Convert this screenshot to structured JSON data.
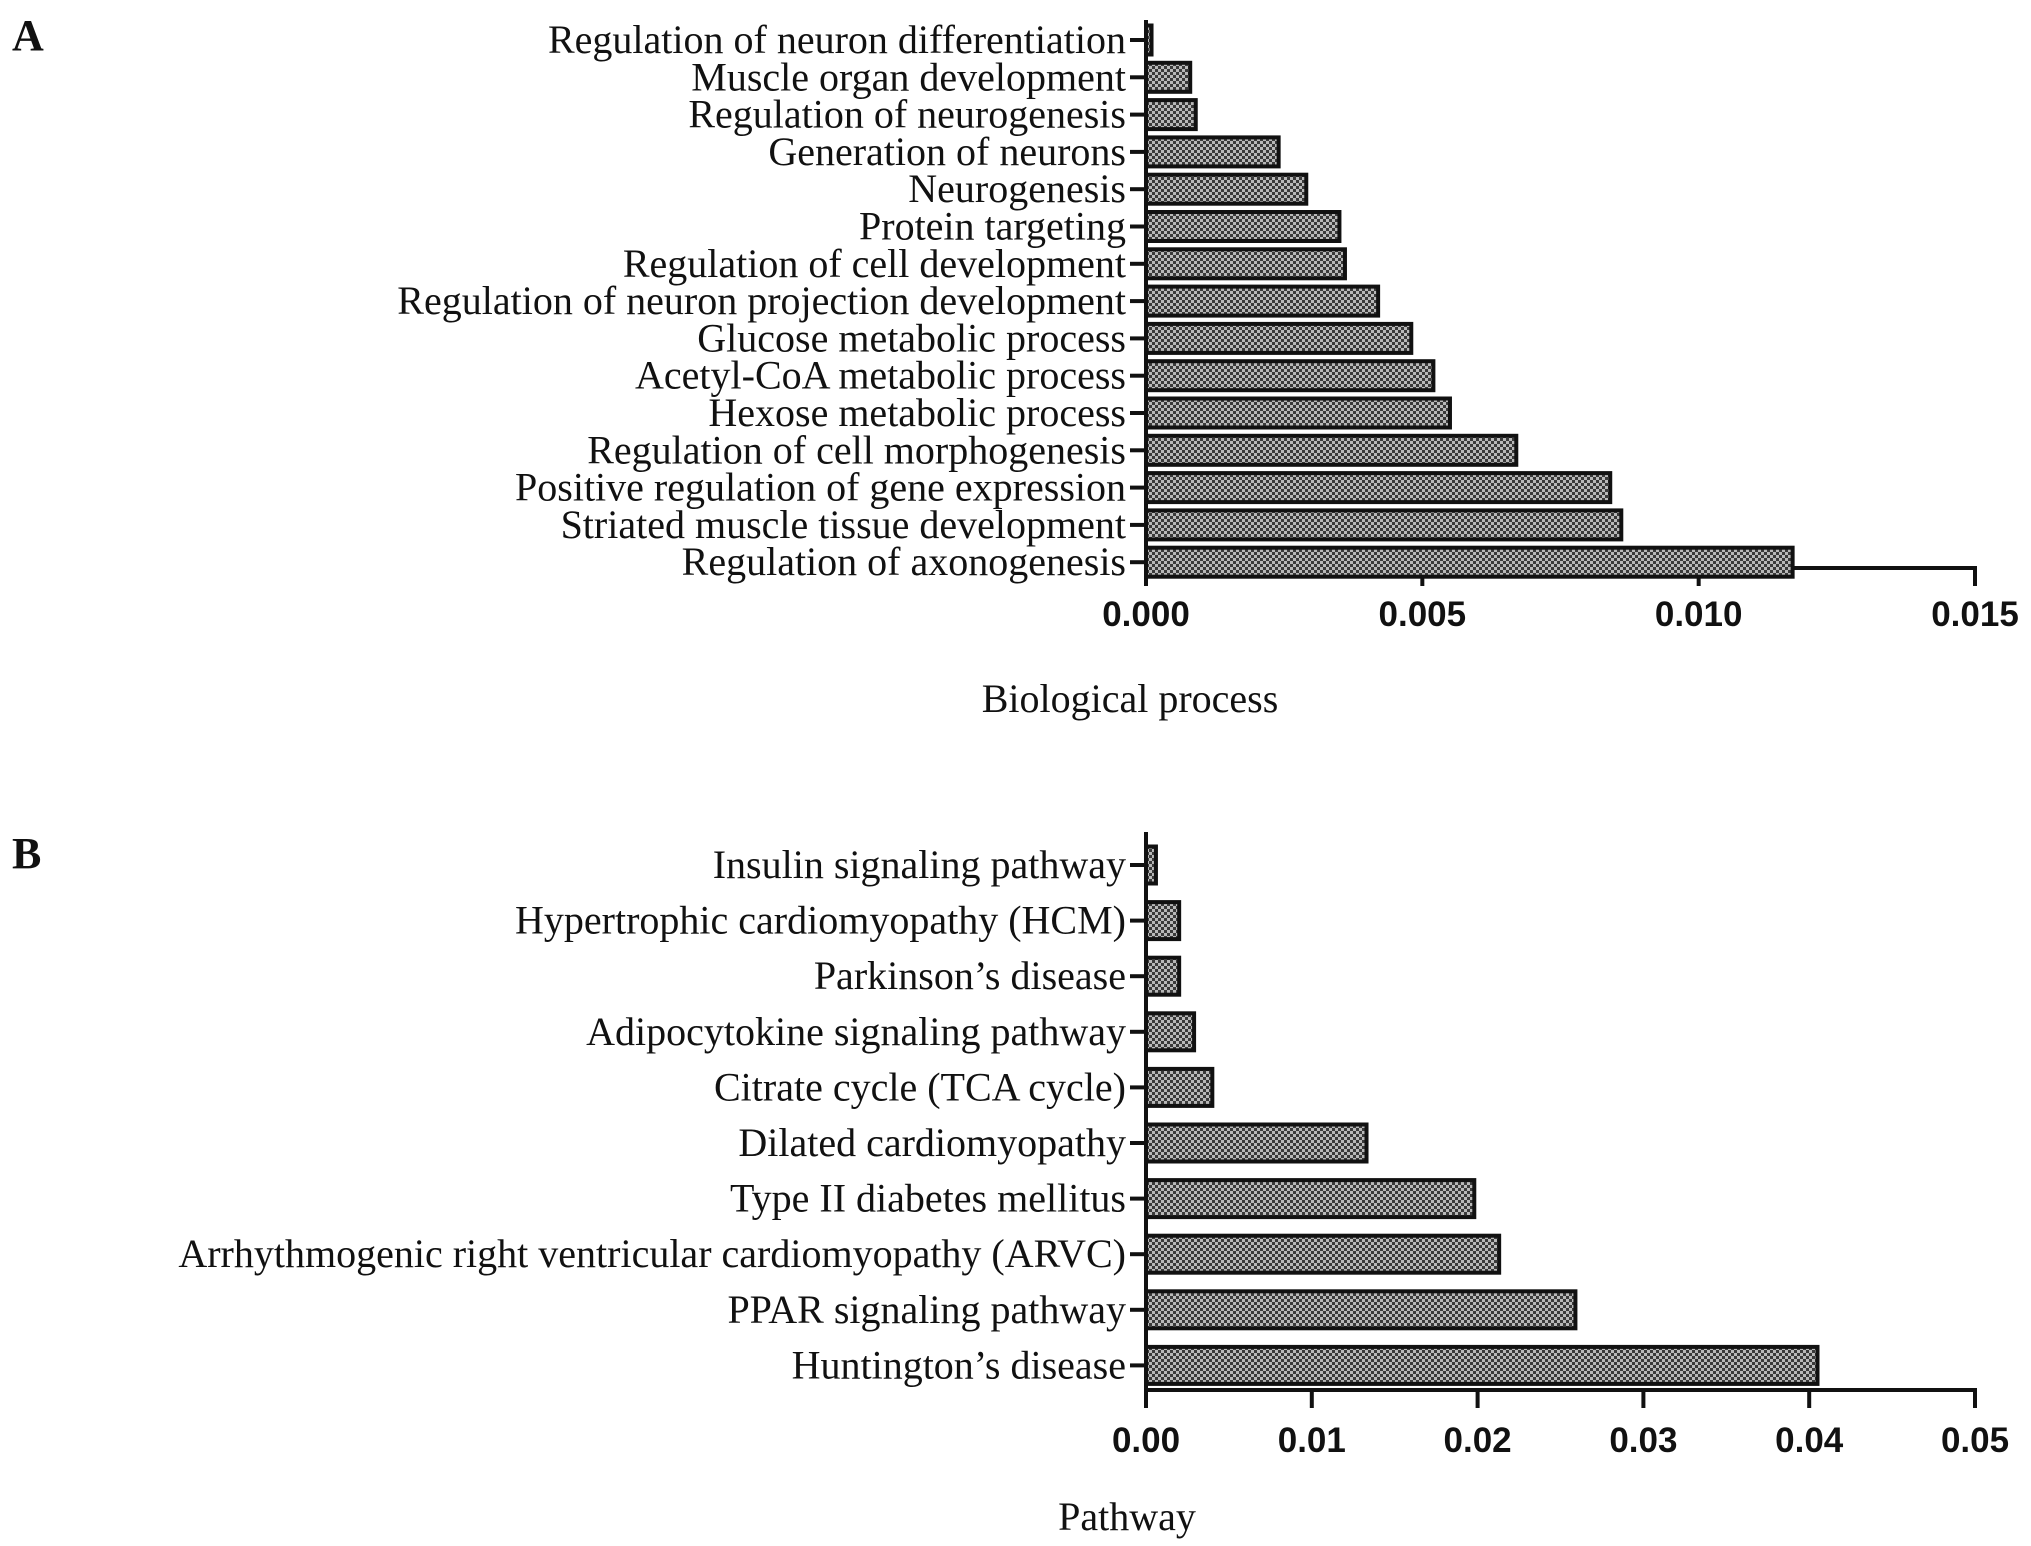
{
  "colors": {
    "bar_fill": "#9a9a9a",
    "bar_stroke": "#111111",
    "axis": "#111111"
  },
  "chart_data": [
    {
      "type": "bar",
      "orientation": "horizontal",
      "panel_label": "A",
      "categories": [
        "Regulation of neuron differentiation",
        "Muscle organ development",
        "Regulation of neurogenesis",
        "Generation of neurons",
        "Neurogenesis",
        "Protein targeting",
        "Regulation of cell development",
        "Regulation of neuron projection development",
        "Glucose metabolic process",
        "Acetyl-CoA metabolic process",
        "Hexose metabolic process",
        "Regulation of cell morphogenesis",
        "Positive regulation of gene expression",
        "Striated muscle tissue development",
        "Regulation of axonogenesis"
      ],
      "values": [
        0.0001,
        0.0008,
        0.0009,
        0.0024,
        0.0029,
        0.0035,
        0.0036,
        0.0042,
        0.0048,
        0.0052,
        0.0055,
        0.0067,
        0.0084,
        0.0086,
        0.0117
      ],
      "xlabel": "Biological process",
      "xlim": [
        0,
        0.015
      ],
      "xticks": [
        "0.000",
        "0.005",
        "0.010",
        "0.015"
      ],
      "xtick_values": [
        0,
        0.005,
        0.01,
        0.015
      ],
      "grid": false,
      "legend": "none"
    },
    {
      "type": "bar",
      "orientation": "horizontal",
      "panel_label": "B",
      "categories": [
        "Insulin signaling pathway",
        "Hypertrophic cardiomyopathy (HCM)",
        "Parkinson’s disease",
        "Adipocytokine signaling pathway",
        "Citrate cycle (TCA cycle)",
        "Dilated cardiomyopathy",
        "Type II diabetes mellitus",
        "Arrhythmogenic right ventricular cardiomyopathy (ARVC)",
        "PPAR signaling pathway",
        "Huntington’s disease"
      ],
      "values": [
        0.0006,
        0.002,
        0.002,
        0.0029,
        0.004,
        0.0133,
        0.0198,
        0.0213,
        0.0259,
        0.0405
      ],
      "xlabel": "Pathway",
      "xlim": [
        0,
        0.05
      ],
      "xticks": [
        "0.00",
        "0.01",
        "0.02",
        "0.03",
        "0.04",
        "0.05"
      ],
      "xtick_values": [
        0,
        0.01,
        0.02,
        0.03,
        0.04,
        0.05
      ],
      "grid": false,
      "legend": "none"
    }
  ]
}
